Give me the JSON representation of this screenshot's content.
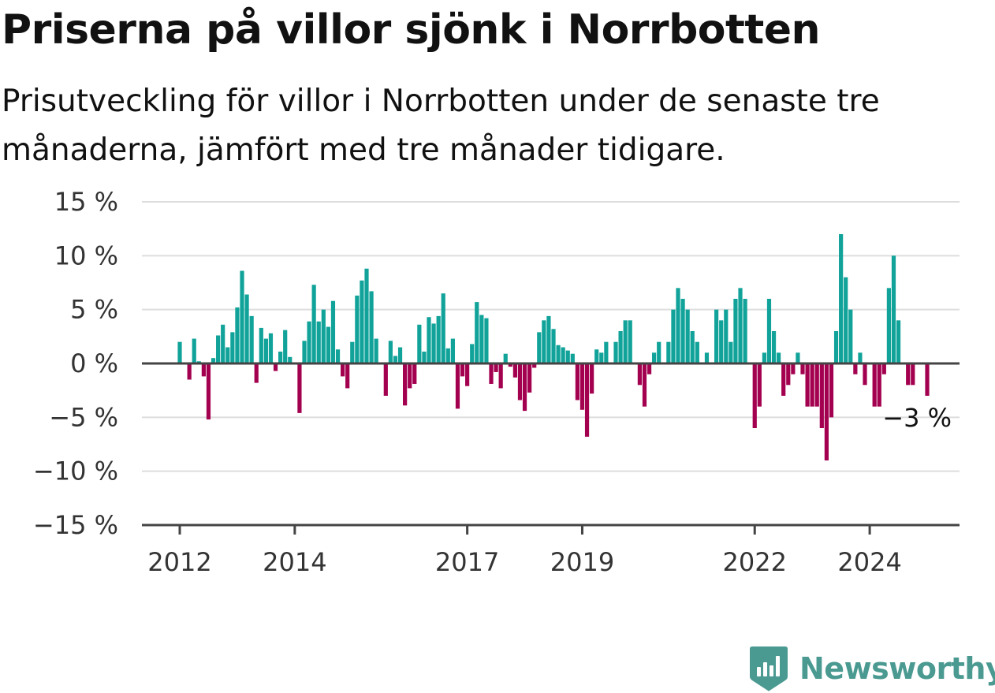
{
  "title": "Priserna på villor sjönk i Norrbotten",
  "subtitle": "Prisutveckling för villor i Norrbotten under de senaste tre månaderna, jämfört med tre månader tidigare.",
  "logo_text": "Newsworthy",
  "colors": {
    "positive": "#11a39a",
    "negative": "#a3004f",
    "grid": "#dddddd",
    "axis": "#444444",
    "text": "#333333"
  },
  "chart_data": {
    "type": "bar",
    "title": "Priserna på villor sjönk i Norrbotten",
    "subtitle": "Prisutveckling för villor i Norrbotten under de senaste tre månaderna, jämfört med tre månader tidigare.",
    "ylim": [
      -15,
      15
    ],
    "y_ticks": [
      15,
      10,
      5,
      0,
      -5,
      -10,
      -15
    ],
    "y_tick_labels": [
      "15 %",
      "10 %",
      "5 %",
      "0 %",
      "−5 %",
      "−10 %",
      "−15 %"
    ],
    "x_tick_labels": [
      "2012",
      "2014",
      "2017",
      "2019",
      "2022",
      "2024"
    ],
    "x_tick_dates": [
      "2012-01",
      "2014-01",
      "2017-01",
      "2019-01",
      "2022-01",
      "2024-01"
    ],
    "start_month": "2012-01",
    "end_month": "2024-12",
    "grid": true,
    "last_value_label": "−3 %",
    "values": [
      2,
      0,
      -1.5,
      2.3,
      0.2,
      -1.2,
      -5.2,
      0.5,
      2.6,
      3.6,
      1.5,
      2.9,
      5.2,
      8.6,
      6.4,
      4.4,
      -1.8,
      3.3,
      2.3,
      2.8,
      -0.7,
      1.1,
      3.1,
      0.6,
      0,
      -4.6,
      2.1,
      3.9,
      7.3,
      3.9,
      5,
      3.4,
      5.8,
      1.3,
      -1.2,
      -2.3,
      2,
      6.3,
      7.7,
      8.8,
      6.7,
      2.3,
      0,
      -3,
      2.1,
      0.7,
      1.5,
      -3.9,
      -2.3,
      -1.9,
      3.6,
      1.1,
      4.3,
      3.7,
      4.4,
      6.5,
      1.4,
      2.3,
      -4.2,
      -1.2,
      -2.1,
      1.8,
      5.7,
      4.5,
      4.2,
      -1.9,
      -0.8,
      -2.3,
      0.9,
      -0.3,
      -1.3,
      -3.4,
      -4.4,
      -2.7,
      -0.4,
      2.9,
      4,
      4.4,
      3.2,
      1.7,
      1.5,
      1.2,
      0.9,
      -3.4,
      -4.3,
      -6.8,
      -2.8,
      1.3,
      1,
      2,
      0,
      2,
      3,
      4,
      4,
      0,
      -2,
      -4,
      -1,
      1,
      2,
      0,
      2,
      5,
      7,
      6,
      5,
      3,
      2,
      0,
      1,
      0,
      5,
      4,
      5,
      2,
      6,
      7,
      6,
      0,
      -6,
      -4,
      1,
      6,
      3,
      1,
      -3,
      -2,
      -1,
      1,
      -1,
      -4,
      -4,
      -4,
      -6,
      -9,
      -5,
      3,
      12,
      8,
      5,
      -1,
      1,
      -2,
      0,
      -4,
      -4,
      -1,
      7,
      10,
      4,
      0,
      -2,
      -2,
      0,
      0,
      -3
    ]
  }
}
